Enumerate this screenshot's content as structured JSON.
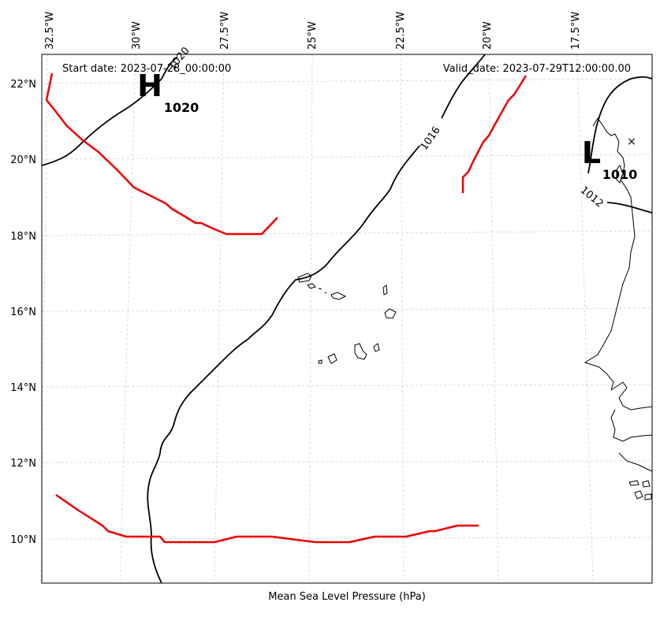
{
  "header": {
    "start_date": "Start date: 2023-07-28_00:00:00",
    "valid_date": "Valid_date: 2023-07-29T12:00:00.00"
  },
  "axis_label": "Mean Sea Level Pressure (hPa)",
  "lon_ticks": [
    "32.5°W",
    "30°W",
    "27.5°W",
    "25°W",
    "22.5°W",
    "20°W",
    "17.5°W"
  ],
  "lat_ticks": [
    "22°N",
    "20°N",
    "18°N",
    "16°N",
    "14°N",
    "12°N",
    "10°N"
  ],
  "pressure_centers": [
    {
      "type": "H",
      "value": "1020"
    },
    {
      "type": "L",
      "value": "1010"
    }
  ],
  "contour_labels": [
    "1016",
    "1012",
    "1020"
  ],
  "colors": {
    "isobar": "#000000",
    "front": "#ee0000",
    "grid": "#cccccc",
    "coast": "#000000"
  }
}
